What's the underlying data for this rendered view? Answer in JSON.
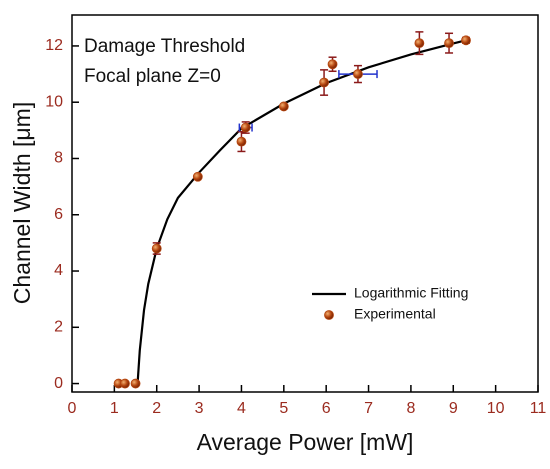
{
  "chart_data": {
    "type": "scatter",
    "xlabel": "Average Power [mW]",
    "ylabel": "Channel Width [μm]",
    "annotations": [
      "Damage Threshold",
      "Focal plane Z=0"
    ],
    "xlim": [
      0,
      11
    ],
    "ylim": [
      -0.3,
      13.1
    ],
    "xticks": [
      0,
      1,
      2,
      3,
      4,
      5,
      6,
      7,
      8,
      9,
      10,
      11
    ],
    "yticks": [
      0,
      2,
      4,
      6,
      8,
      10,
      12
    ],
    "legend": "lower right",
    "series": [
      {
        "name": "Logarithmic Fitting",
        "type": "line",
        "color": "#000000",
        "x": [
          1.55,
          1.6,
          1.7,
          1.8,
          2,
          2.25,
          2.5,
          3,
          3.5,
          4,
          5,
          6,
          7,
          8,
          9,
          9.3
        ],
        "values": [
          0.05,
          1.18,
          2.61,
          3.54,
          4.8,
          5.84,
          6.6,
          7.5,
          8.3,
          9.07,
          9.95,
          10.68,
          11.24,
          11.7,
          12.09,
          12.2
        ]
      },
      {
        "name": "Experimental",
        "type": "scatter",
        "color": "#b4450f",
        "error_color": "#8b1a1a",
        "xerror_color": "#2233cc",
        "x": [
          1.1,
          1.25,
          1.5,
          2.0,
          2.97,
          4.0,
          4.1,
          5.0,
          5.95,
          6.15,
          6.75,
          8.2,
          8.9,
          9.3
        ],
        "values": [
          0,
          0,
          0,
          4.8,
          7.35,
          8.6,
          9.1,
          9.85,
          10.7,
          11.35,
          11.0,
          12.1,
          12.1,
          12.2
        ],
        "yerr": [
          null,
          null,
          null,
          0.2,
          null,
          0.35,
          0.2,
          null,
          0.45,
          0.25,
          0.3,
          0.4,
          0.35,
          0.1
        ],
        "xerr": [
          null,
          null,
          null,
          null,
          null,
          null,
          0.15,
          null,
          null,
          null,
          0.45,
          null,
          null,
          null
        ]
      }
    ]
  }
}
